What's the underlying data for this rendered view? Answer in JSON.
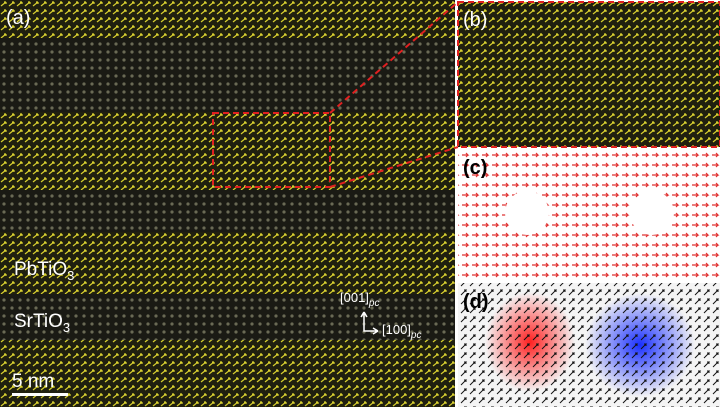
{
  "panels": {
    "a": {
      "label": "(a)",
      "layers": [
        {
          "main": "PbTiO",
          "sub": "3"
        },
        {
          "main": "SrTiO",
          "sub": "3"
        }
      ],
      "axes": [
        {
          "main": "[001]",
          "sub": "pc"
        },
        {
          "main": "[100]",
          "sub": "pc"
        }
      ],
      "scale_bar": "5 nm"
    },
    "b": {
      "label": "(b)"
    },
    "c": {
      "label": "(c)"
    },
    "d": {
      "label": "(d)"
    }
  }
}
